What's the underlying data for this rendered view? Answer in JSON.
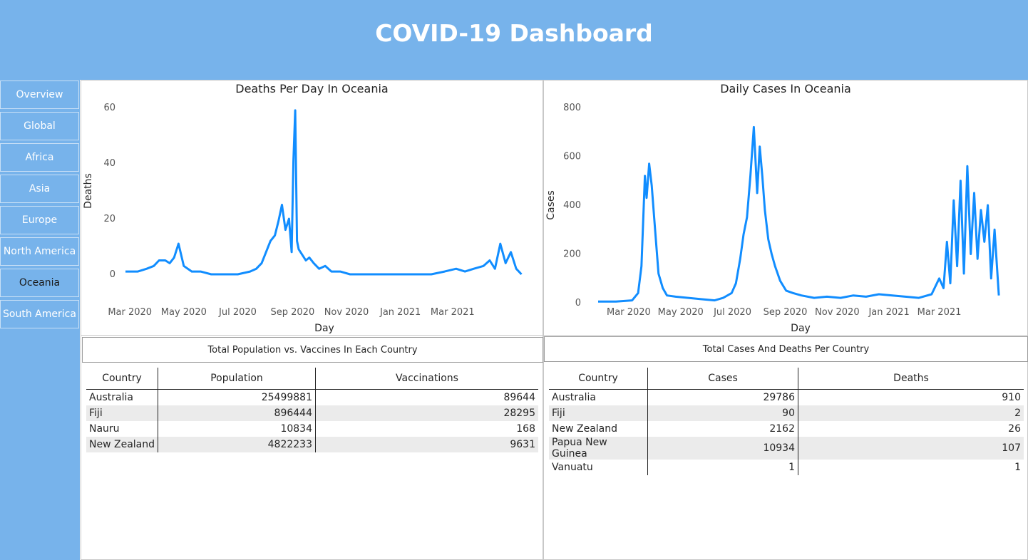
{
  "header": {
    "title": "COVID-19 Dashboard"
  },
  "sidebar": {
    "items": [
      {
        "label": "Overview"
      },
      {
        "label": "Global"
      },
      {
        "label": "Africa"
      },
      {
        "label": "Asia"
      },
      {
        "label": "Europe"
      },
      {
        "label": "North America"
      },
      {
        "label": "Oceania",
        "active": true
      },
      {
        "label": "South America"
      }
    ]
  },
  "colors": {
    "header_bg": "#77b3eb",
    "line": "#118dff",
    "row_alt": "#ebebeb"
  },
  "chart_data": [
    {
      "type": "line",
      "title": "Deaths Per Day In Oceania",
      "xlabel": "Day",
      "ylabel": "Deaths",
      "x_ticks": [
        "Mar 2020",
        "May 2020",
        "Jul 2020",
        "Sep 2020",
        "Nov 2020",
        "Jan 2021",
        "Mar 2021"
      ],
      "y_ticks": [
        "0",
        "20",
        "40",
        "60"
      ],
      "ylim": [
        0,
        60
      ],
      "xlim": [
        "2020-02-25",
        "2021-05-20"
      ],
      "grid": false,
      "series": [
        {
          "x": [
            "2020-02-25",
            "2020-03-10",
            "2020-03-20",
            "2020-03-28",
            "2020-04-03",
            "2020-04-10",
            "2020-04-15",
            "2020-04-20",
            "2020-04-25",
            "2020-05-01",
            "2020-05-10",
            "2020-05-20",
            "2020-06-01",
            "2020-06-15",
            "2020-07-01",
            "2020-07-15",
            "2020-07-22",
            "2020-07-28",
            "2020-08-02",
            "2020-08-07",
            "2020-08-12",
            "2020-08-16",
            "2020-08-20",
            "2020-08-24",
            "2020-08-28",
            "2020-08-31",
            "2020-09-02",
            "2020-09-04",
            "2020-09-06",
            "2020-09-08",
            "2020-09-12",
            "2020-09-16",
            "2020-09-20",
            "2020-09-25",
            "2020-10-01",
            "2020-10-08",
            "2020-10-15",
            "2020-10-25",
            "2020-11-05",
            "2020-11-20",
            "2020-12-05",
            "2020-12-20",
            "2021-01-05",
            "2021-01-20",
            "2021-02-05",
            "2021-02-20",
            "2021-03-05",
            "2021-03-15",
            "2021-03-25",
            "2021-04-05",
            "2021-04-12",
            "2021-04-18",
            "2021-04-24",
            "2021-04-30",
            "2021-05-06",
            "2021-05-12",
            "2021-05-18"
          ],
          "y": [
            1,
            1,
            2,
            3,
            5,
            5,
            4,
            6,
            11,
            3,
            1,
            1,
            0,
            0,
            0,
            1,
            2,
            4,
            8,
            12,
            14,
            19,
            25,
            16,
            20,
            8,
            41,
            59,
            12,
            9,
            7,
            5,
            6,
            4,
            2,
            3,
            1,
            1,
            0,
            0,
            0,
            0,
            0,
            0,
            0,
            1,
            2,
            1,
            2,
            3,
            5,
            2,
            11,
            4,
            8,
            2,
            0
          ]
        }
      ]
    },
    {
      "type": "line",
      "title": "Daily Cases In Oceania",
      "xlabel": "Day",
      "ylabel": "Cases",
      "x_ticks": [
        "Mar 2020",
        "May 2020",
        "Jul 2020",
        "Sep 2020",
        "Nov 2020",
        "Jan 2021",
        "Mar 2021"
      ],
      "y_ticks": [
        "0",
        "200",
        "400",
        "600",
        "800"
      ],
      "ylim": [
        0,
        800
      ],
      "xlim": [
        "2020-01-20",
        "2021-05-20"
      ],
      "grid": false,
      "series": [
        {
          "x": [
            "2020-01-25",
            "2020-02-15",
            "2020-03-05",
            "2020-03-12",
            "2020-03-16",
            "2020-03-20",
            "2020-03-22",
            "2020-03-25",
            "2020-03-28",
            "2020-04-01",
            "2020-04-05",
            "2020-04-10",
            "2020-04-15",
            "2020-04-25",
            "2020-05-10",
            "2020-05-25",
            "2020-06-10",
            "2020-06-20",
            "2020-06-30",
            "2020-07-05",
            "2020-07-10",
            "2020-07-14",
            "2020-07-18",
            "2020-07-22",
            "2020-07-26",
            "2020-07-30",
            "2020-08-02",
            "2020-08-05",
            "2020-08-08",
            "2020-08-12",
            "2020-08-16",
            "2020-08-20",
            "2020-08-26",
            "2020-09-02",
            "2020-09-10",
            "2020-09-20",
            "2020-10-05",
            "2020-10-20",
            "2020-11-05",
            "2020-11-20",
            "2020-12-05",
            "2020-12-20",
            "2021-01-05",
            "2021-01-20",
            "2021-02-05",
            "2021-02-20",
            "2021-03-01",
            "2021-03-06",
            "2021-03-10",
            "2021-03-14",
            "2021-03-18",
            "2021-03-22",
            "2021-03-26",
            "2021-03-30",
            "2021-04-03",
            "2021-04-07",
            "2021-04-11",
            "2021-04-15",
            "2021-04-19",
            "2021-04-23",
            "2021-04-27",
            "2021-05-01",
            "2021-05-05",
            "2021-05-10"
          ],
          "y": [
            5,
            5,
            10,
            40,
            150,
            520,
            430,
            570,
            480,
            300,
            120,
            60,
            30,
            25,
            20,
            15,
            10,
            20,
            40,
            80,
            180,
            280,
            350,
            520,
            720,
            450,
            640,
            520,
            380,
            260,
            200,
            150,
            90,
            50,
            40,
            30,
            20,
            25,
            20,
            30,
            25,
            35,
            30,
            25,
            20,
            35,
            100,
            60,
            250,
            80,
            420,
            150,
            500,
            120,
            560,
            200,
            450,
            180,
            380,
            250,
            400,
            100,
            300,
            30
          ]
        }
      ]
    }
  ],
  "population_table": {
    "title": "Total Population vs. Vaccines In Each Country",
    "columns": [
      "Country",
      "Population",
      "Vaccinations"
    ],
    "rows": [
      [
        "Australia",
        "25499881",
        "89644"
      ],
      [
        "Fiji",
        "896444",
        "28295"
      ],
      [
        "Nauru",
        "10834",
        "168"
      ],
      [
        "New Zealand",
        "4822233",
        "9631"
      ]
    ]
  },
  "cases_table": {
    "title": "Total Cases And Deaths Per Country",
    "columns": [
      "Country",
      "Cases",
      "Deaths"
    ],
    "rows": [
      [
        "Australia",
        "29786",
        "910"
      ],
      [
        "Fiji",
        "90",
        "2"
      ],
      [
        "New Zealand",
        "2162",
        "26"
      ],
      [
        "Papua New Guinea",
        "10934",
        "107"
      ],
      [
        "Vanuatu",
        "1",
        "1"
      ]
    ]
  }
}
